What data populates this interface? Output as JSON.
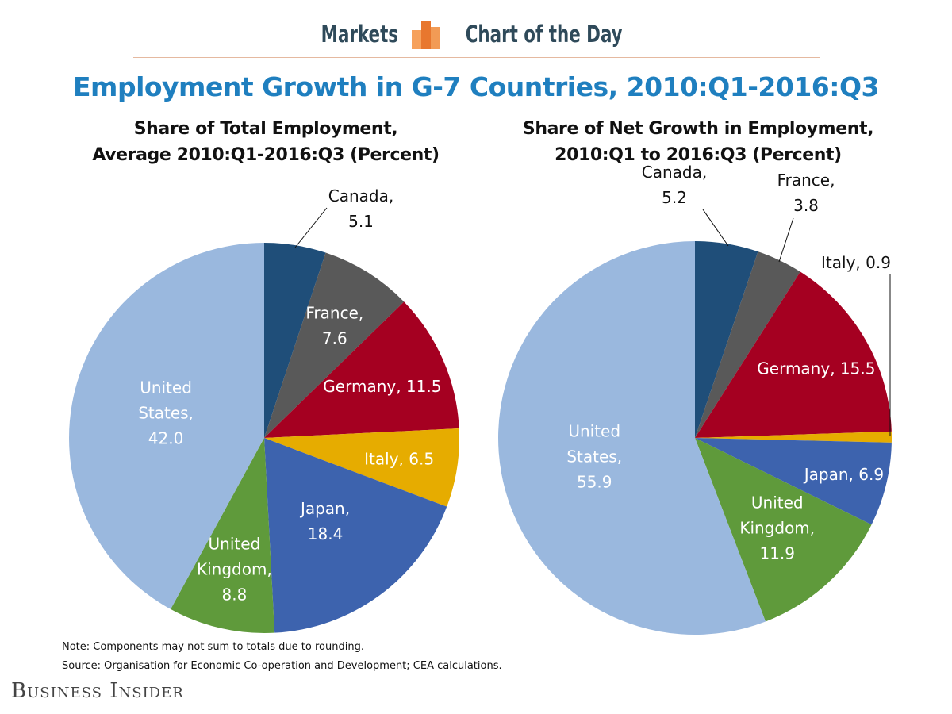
{
  "header": {
    "markets": "Markets",
    "chart_of_the_day": "Chart of the Day",
    "logo_icon": "bar-chart-logo-icon",
    "accent_colors": [
      "#f6a15c",
      "#e8772e",
      "#f29b55"
    ]
  },
  "title": "Employment Growth in G-7 Countries, 2010:Q1-2016:Q3",
  "notes": {
    "note": "Note: Components may not sum to totals due to rounding.",
    "source": "Source: Organisation for Economic Co-operation and Development; CEA calculations."
  },
  "brand": "Business Insider",
  "chart_data": [
    {
      "type": "pie",
      "title_line1": "Share of Total Employment,",
      "title_line2": "Average 2010:Q1-2016:Q3 (Percent)",
      "slices": [
        {
          "label": "Canada",
          "value": 5.1,
          "color": "#1f4e79",
          "text": [
            "Canada,",
            "5.1"
          ],
          "label_color": "#111111"
        },
        {
          "label": "France",
          "value": 7.6,
          "color": "#595959",
          "text": [
            "France,",
            "7.6"
          ],
          "label_color": "#ffffff"
        },
        {
          "label": "Germany",
          "value": 11.5,
          "color": "#a50021",
          "text": [
            "Germany, 11.5"
          ],
          "label_color": "#ffffff"
        },
        {
          "label": "Italy",
          "value": 6.5,
          "color": "#e6ac00",
          "text": [
            "Italy, 6.5"
          ],
          "label_color": "#ffffff"
        },
        {
          "label": "Japan",
          "value": 18.4,
          "color": "#3d63ae",
          "text": [
            "Japan,",
            "18.4"
          ],
          "label_color": "#ffffff"
        },
        {
          "label": "United Kingdom",
          "value": 8.8,
          "color": "#5f9a3b",
          "text": [
            "United",
            "Kingdom,",
            "8.8"
          ],
          "label_color": "#ffffff"
        },
        {
          "label": "United States",
          "value": 42.0,
          "color": "#9ab8de",
          "text": [
            "United",
            "States,",
            "42.0"
          ],
          "label_color": "#ffffff"
        }
      ]
    },
    {
      "type": "pie",
      "title_line1": "Share of Net Growth in Employment,",
      "title_line2": "2010:Q1 to 2016:Q3 (Percent)",
      "slices": [
        {
          "label": "Canada",
          "value": 5.2,
          "color": "#1f4e79",
          "text": [
            "Canada,",
            "5.2"
          ],
          "label_color": "#111111"
        },
        {
          "label": "France",
          "value": 3.8,
          "color": "#595959",
          "text": [
            "France,",
            "3.8"
          ],
          "label_color": "#111111"
        },
        {
          "label": "Germany",
          "value": 15.5,
          "color": "#a50021",
          "text": [
            "Germany, 15.5"
          ],
          "label_color": "#ffffff"
        },
        {
          "label": "Italy",
          "value": 0.9,
          "color": "#e6ac00",
          "text": [
            "Italy, 0.9"
          ],
          "label_color": "#111111"
        },
        {
          "label": "Japan",
          "value": 6.9,
          "color": "#3d63ae",
          "text": [
            "Japan, 6.9"
          ],
          "label_color": "#ffffff"
        },
        {
          "label": "United Kingdom",
          "value": 11.9,
          "color": "#5f9a3b",
          "text": [
            "United",
            "Kingdom,",
            "11.9"
          ],
          "label_color": "#ffffff"
        },
        {
          "label": "United States",
          "value": 55.9,
          "color": "#9ab8de",
          "text": [
            "United",
            "States,",
            "55.9"
          ],
          "label_color": "#ffffff"
        }
      ]
    }
  ]
}
